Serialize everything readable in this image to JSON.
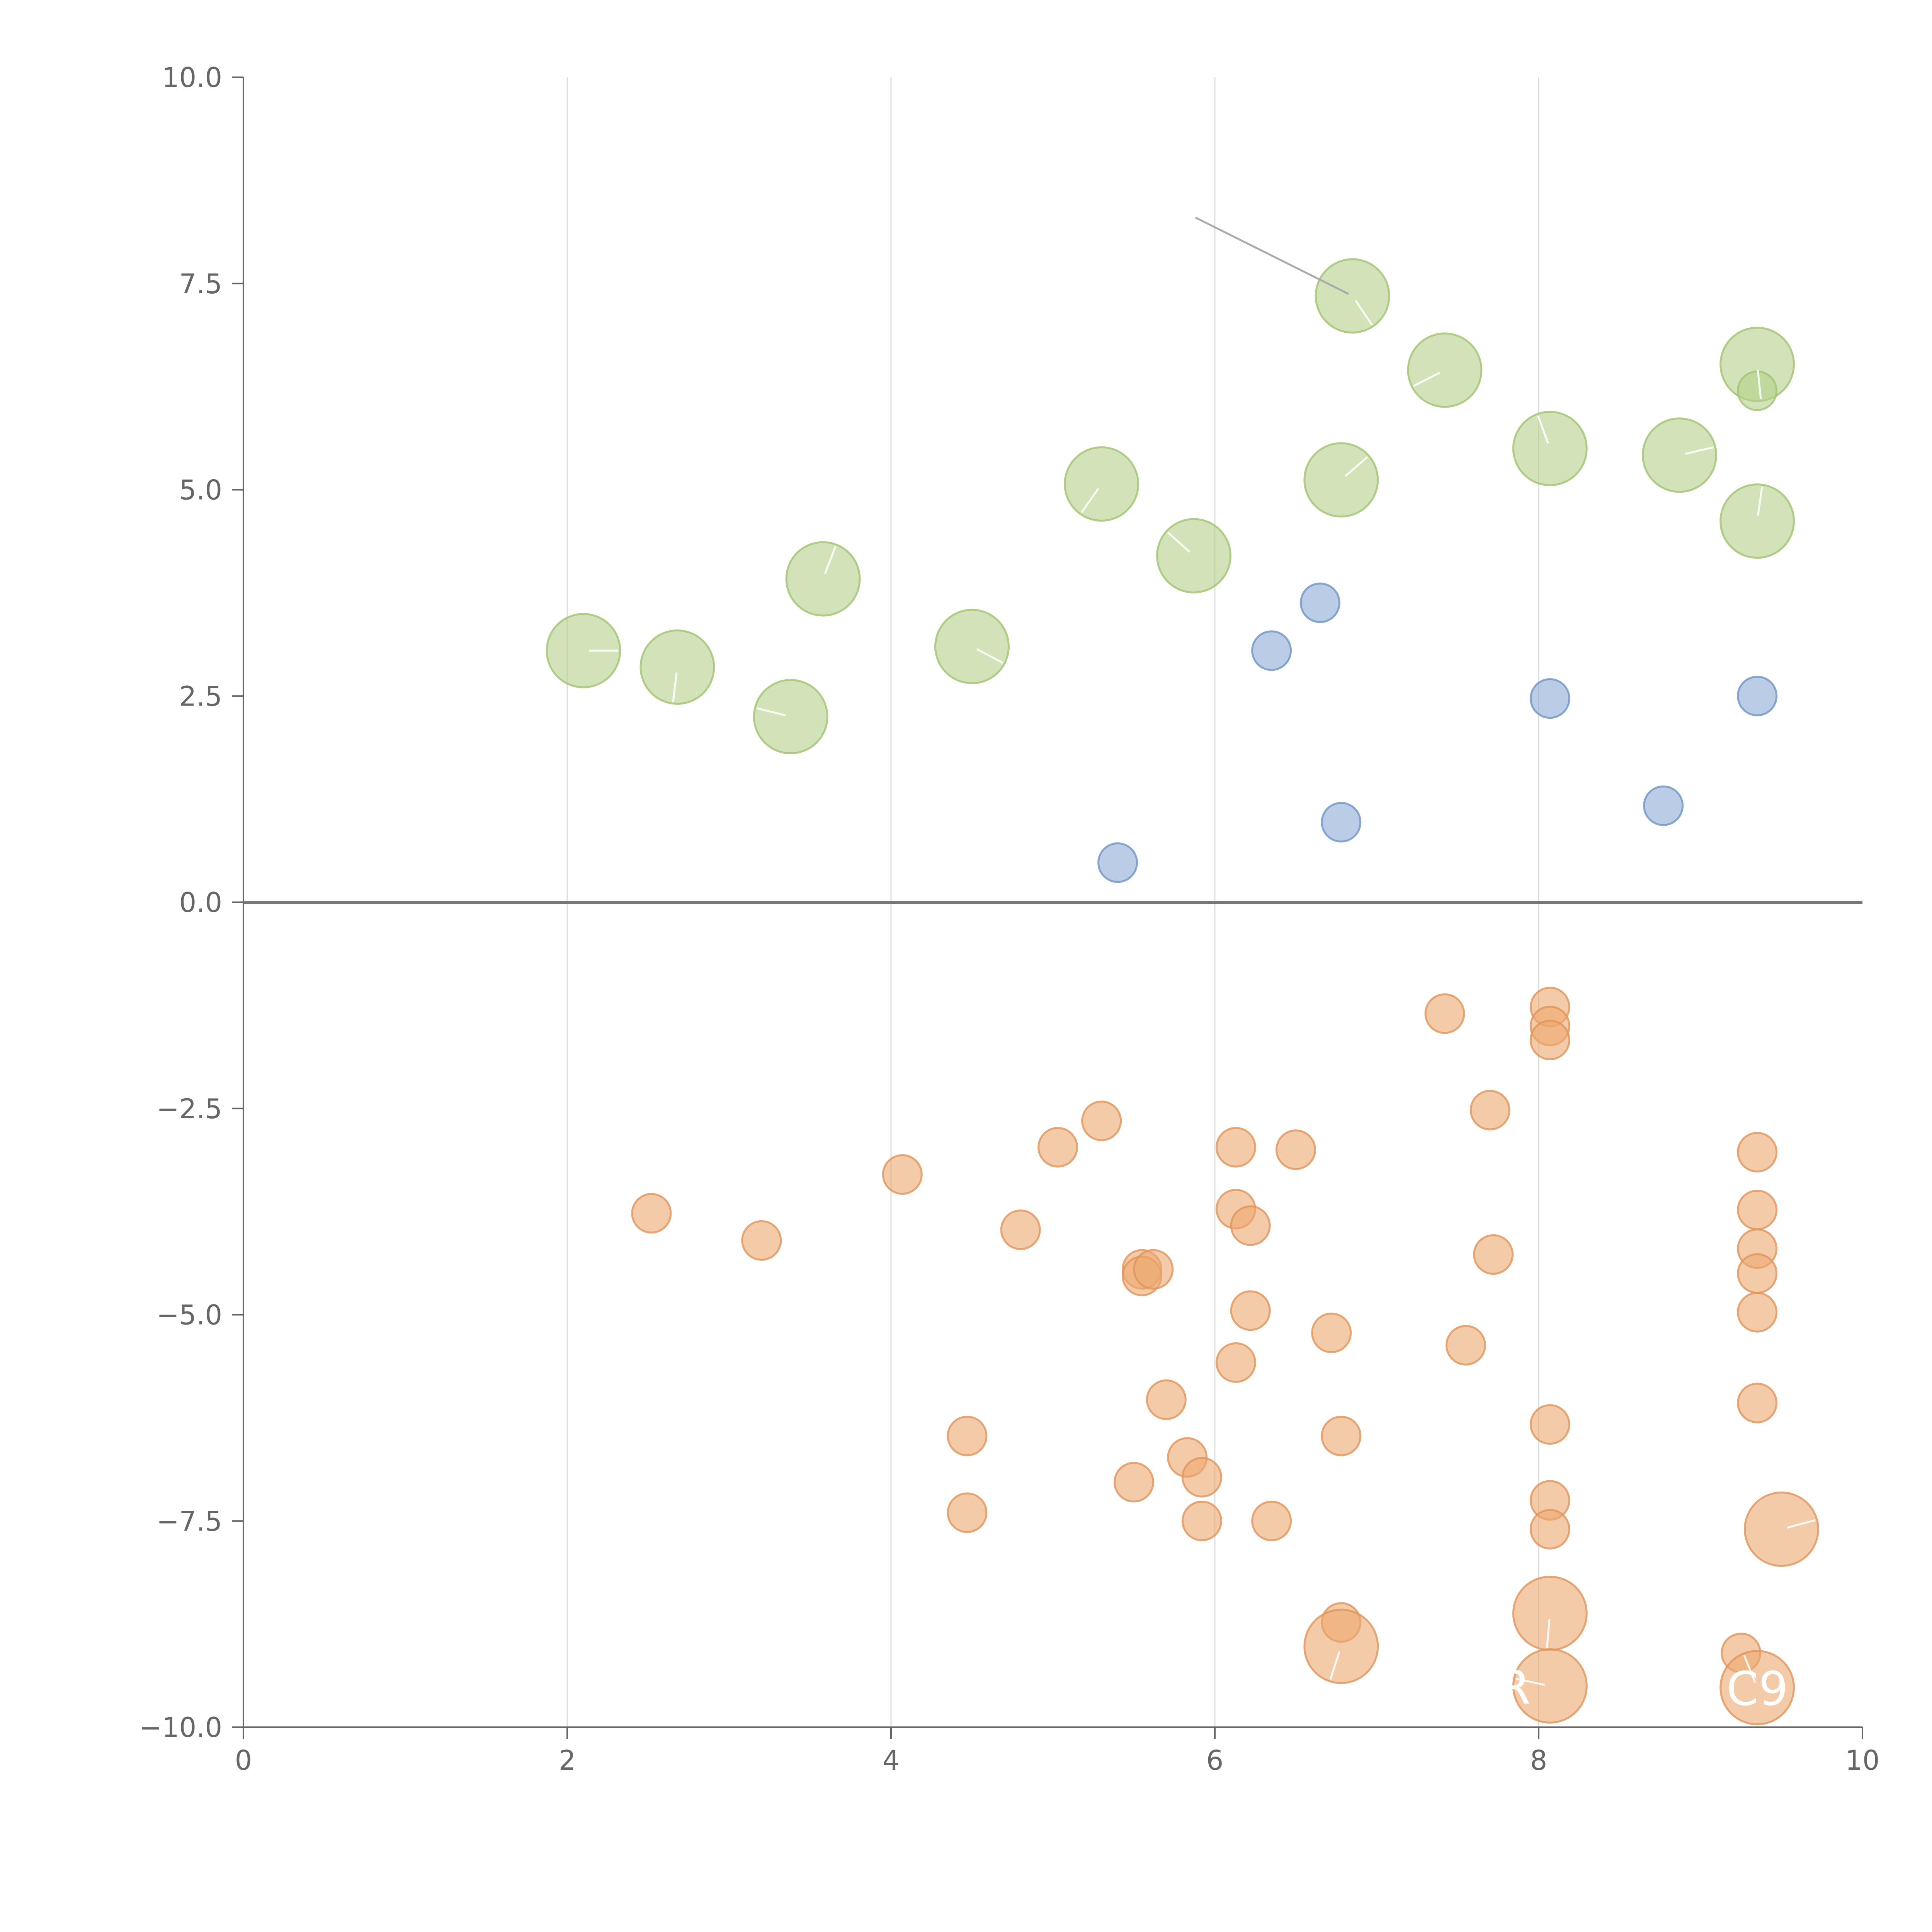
{
  "chart_data": {
    "type": "scatter",
    "title": "",
    "xlabel": "",
    "ylabel": "",
    "xlim": [
      0,
      10
    ],
    "ylim": [
      -10,
      10
    ],
    "x_ticks": [
      "0",
      "2",
      "4",
      "6",
      "8",
      "10"
    ],
    "y_ticks": [
      "10.0",
      "7.5",
      "5.0",
      "2.5",
      "0.0",
      "−2.5",
      "−5.0",
      "−7.5",
      "−10.0"
    ],
    "grid": "vertical",
    "zero_line": true,
    "colors": {
      "green": "#b5d08a",
      "blue": "#8eacd6",
      "orange": "#eda96f"
    },
    "series": [
      {
        "color": "green",
        "points": [
          {
            "x": 2.1,
            "y": 3.05,
            "size": "large"
          },
          {
            "x": 2.68,
            "y": 2.85,
            "size": "large"
          },
          {
            "x": 3.38,
            "y": 2.25,
            "size": "large"
          },
          {
            "x": 3.58,
            "y": 3.92,
            "size": "large"
          },
          {
            "x": 4.5,
            "y": 3.1,
            "size": "large"
          },
          {
            "x": 5.3,
            "y": 5.07,
            "size": "large"
          },
          {
            "x": 5.87,
            "y": 4.2,
            "size": "large"
          },
          {
            "x": 6.78,
            "y": 5.12,
            "size": "large"
          },
          {
            "x": 6.85,
            "y": 7.35,
            "size": "large"
          },
          {
            "x": 7.42,
            "y": 6.45,
            "size": "large"
          },
          {
            "x": 8.07,
            "y": 5.5,
            "size": "large"
          },
          {
            "x": 8.87,
            "y": 5.42,
            "size": "large"
          },
          {
            "x": 9.35,
            "y": 6.52,
            "size": "large"
          },
          {
            "x": 9.35,
            "y": 6.2,
            "size": "small"
          },
          {
            "x": 9.35,
            "y": 4.62,
            "size": "large"
          }
        ]
      },
      {
        "color": "blue",
        "points": [
          {
            "x": 5.4,
            "y": 0.48,
            "size": "small"
          },
          {
            "x": 6.35,
            "y": 3.05,
            "size": "small"
          },
          {
            "x": 6.65,
            "y": 3.63,
            "size": "small"
          },
          {
            "x": 6.78,
            "y": 0.97,
            "size": "small"
          },
          {
            "x": 8.07,
            "y": 2.47,
            "size": "small"
          },
          {
            "x": 8.77,
            "y": 1.17,
            "size": "small"
          },
          {
            "x": 9.35,
            "y": 2.5,
            "size": "small"
          }
        ]
      },
      {
        "color": "orange",
        "points": [
          {
            "x": 2.52,
            "y": -3.77,
            "size": "small"
          },
          {
            "x": 3.2,
            "y": -4.1,
            "size": "small"
          },
          {
            "x": 4.07,
            "y": -3.3,
            "size": "small"
          },
          {
            "x": 4.47,
            "y": -6.47,
            "size": "small"
          },
          {
            "x": 4.47,
            "y": -7.4,
            "size": "small"
          },
          {
            "x": 4.8,
            "y": -3.97,
            "size": "small"
          },
          {
            "x": 5.03,
            "y": -2.97,
            "size": "small"
          },
          {
            "x": 5.3,
            "y": -2.65,
            "size": "small"
          },
          {
            "x": 5.5,
            "y": -7.03,
            "size": "small"
          },
          {
            "x": 5.55,
            "y": -4.45,
            "size": "small"
          },
          {
            "x": 5.55,
            "y": -4.53,
            "size": "small"
          },
          {
            "x": 5.62,
            "y": -4.45,
            "size": "small"
          },
          {
            "x": 5.7,
            "y": -6.03,
            "size": "small"
          },
          {
            "x": 5.83,
            "y": -6.73,
            "size": "small"
          },
          {
            "x": 5.92,
            "y": -6.97,
            "size": "small"
          },
          {
            "x": 5.92,
            "y": -7.5,
            "size": "small"
          },
          {
            "x": 6.13,
            "y": -2.97,
            "size": "small"
          },
          {
            "x": 6.13,
            "y": -3.72,
            "size": "small"
          },
          {
            "x": 6.13,
            "y": -5.58,
            "size": "small"
          },
          {
            "x": 6.22,
            "y": -3.92,
            "size": "small"
          },
          {
            "x": 6.22,
            "y": -4.95,
            "size": "small"
          },
          {
            "x": 6.35,
            "y": -7.5,
            "size": "small"
          },
          {
            "x": 6.5,
            "y": -3.0,
            "size": "small"
          },
          {
            "x": 6.72,
            "y": -5.22,
            "size": "small"
          },
          {
            "x": 6.78,
            "y": -6.47,
            "size": "small"
          },
          {
            "x": 6.78,
            "y": -8.73,
            "size": "small"
          },
          {
            "x": 6.78,
            "y": -9.02,
            "size": "large"
          },
          {
            "x": 7.42,
            "y": -1.35,
            "size": "small"
          },
          {
            "x": 7.55,
            "y": -5.37,
            "size": "small"
          },
          {
            "x": 7.7,
            "y": -2.52,
            "size": "small"
          },
          {
            "x": 7.72,
            "y": -4.27,
            "size": "small"
          },
          {
            "x": 8.07,
            "y": -1.27,
            "size": "small"
          },
          {
            "x": 8.07,
            "y": -1.5,
            "size": "small"
          },
          {
            "x": 8.07,
            "y": -1.67,
            "size": "small"
          },
          {
            "x": 8.07,
            "y": -6.33,
            "size": "small"
          },
          {
            "x": 8.07,
            "y": -7.25,
            "size": "small"
          },
          {
            "x": 8.07,
            "y": -7.6,
            "size": "small"
          },
          {
            "x": 8.07,
            "y": -8.62,
            "size": "large"
          },
          {
            "x": 8.07,
            "y": -9.5,
            "size": "large"
          },
          {
            "x": 9.25,
            "y": -9.1,
            "size": "small"
          },
          {
            "x": 9.35,
            "y": -3.03,
            "size": "small"
          },
          {
            "x": 9.35,
            "y": -3.73,
            "size": "small"
          },
          {
            "x": 9.35,
            "y": -4.2,
            "size": "small"
          },
          {
            "x": 9.35,
            "y": -4.5,
            "size": "small"
          },
          {
            "x": 9.35,
            "y": -4.97,
            "size": "small"
          },
          {
            "x": 9.35,
            "y": -6.07,
            "size": "small"
          },
          {
            "x": 9.35,
            "y": -9.52,
            "size": "large"
          },
          {
            "x": 9.5,
            "y": -7.6,
            "size": "large"
          }
        ]
      }
    ],
    "annotations": [
      {
        "text": "R",
        "x": 7.85,
        "y": -9.5
      },
      {
        "text": "C9",
        "x": 9.35,
        "y": -9.52
      }
    ]
  }
}
